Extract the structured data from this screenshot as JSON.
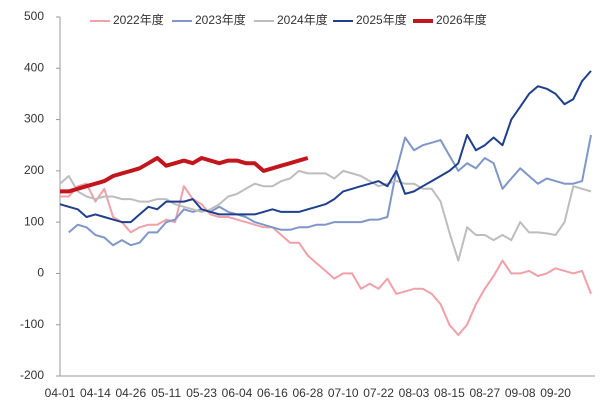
{
  "chart_data": {
    "type": "line",
    "categories": [
      "04-01",
      null,
      null,
      null,
      "04-14",
      null,
      null,
      null,
      "04-26",
      null,
      null,
      null,
      "05-11",
      null,
      null,
      null,
      "05-23",
      null,
      null,
      null,
      "06-04",
      null,
      null,
      null,
      "06-16",
      null,
      null,
      null,
      "06-28",
      null,
      null,
      null,
      "07-10",
      null,
      null,
      null,
      "07-22",
      null,
      null,
      null,
      "08-03",
      null,
      null,
      null,
      "08-15",
      null,
      null,
      null,
      "08-27",
      null,
      null,
      null,
      "09-08",
      null,
      null,
      null,
      "09-20",
      null,
      null,
      null,
      null
    ],
    "series": [
      {
        "name": "2022年度",
        "color": "#f0a0a8",
        "width": 2,
        "values": [
          150,
          150,
          170,
          175,
          140,
          165,
          110,
          100,
          80,
          90,
          95,
          95,
          105,
          100,
          170,
          145,
          135,
          115,
          110,
          110,
          105,
          100,
          95,
          90,
          90,
          75,
          60,
          60,
          35,
          20,
          5,
          -10,
          0,
          0,
          -30,
          -20,
          -30,
          -10,
          -40,
          -35,
          -30,
          -30,
          -40,
          -60,
          -100,
          -120,
          -100,
          -60,
          -30,
          -5,
          25,
          0,
          0,
          5,
          -5,
          0,
          10,
          5,
          0,
          5,
          -40
        ]
      },
      {
        "name": "2023年度",
        "color": "#7f97c8",
        "width": 2,
        "values": [
          null,
          80,
          95,
          90,
          75,
          70,
          55,
          65,
          55,
          60,
          80,
          80,
          100,
          105,
          125,
          120,
          125,
          120,
          130,
          120,
          115,
          110,
          100,
          95,
          90,
          85,
          85,
          90,
          90,
          95,
          95,
          100,
          100,
          100,
          100,
          105,
          105,
          110,
          200,
          265,
          240,
          250,
          255,
          260,
          230,
          200,
          215,
          205,
          225,
          215,
          165,
          185,
          205,
          190,
          175,
          185,
          180,
          175,
          175,
          180,
          270
        ]
      },
      {
        "name": "2024年度",
        "color": "#bdbdbd",
        "width": 2,
        "values": [
          175,
          190,
          160,
          150,
          145,
          150,
          150,
          145,
          145,
          140,
          140,
          145,
          145,
          135,
          130,
          125,
          120,
          125,
          135,
          150,
          155,
          165,
          175,
          170,
          170,
          180,
          185,
          200,
          195,
          195,
          195,
          185,
          200,
          195,
          190,
          180,
          170,
          175,
          180,
          175,
          175,
          165,
          165,
          140,
          80,
          25,
          90,
          75,
          75,
          65,
          75,
          65,
          100,
          80,
          80,
          78,
          75,
          100,
          170,
          165,
          160
        ]
      },
      {
        "name": "2025年度",
        "color": "#1f3f8c",
        "width": 2,
        "values": [
          135,
          130,
          125,
          110,
          115,
          110,
          105,
          100,
          100,
          115,
          130,
          125,
          140,
          140,
          140,
          145,
          125,
          120,
          115,
          115,
          115,
          115,
          115,
          120,
          125,
          120,
          120,
          120,
          125,
          130,
          135,
          145,
          160,
          165,
          170,
          175,
          180,
          170,
          200,
          155,
          160,
          170,
          180,
          190,
          200,
          215,
          270,
          240,
          250,
          265,
          250,
          300,
          325,
          350,
          365,
          360,
          350,
          330,
          340,
          375,
          395
        ]
      },
      {
        "name": "2026年度",
        "color": "#c0161c",
        "width": 4,
        "values": [
          160,
          160,
          165,
          170,
          175,
          180,
          190,
          195,
          200,
          205,
          215,
          225,
          210,
          215,
          220,
          215,
          225,
          220,
          215,
          220,
          220,
          215,
          215,
          200,
          205,
          210,
          215,
          220,
          225,
          null,
          null,
          null,
          null,
          null,
          null,
          null,
          null,
          null,
          null,
          null,
          null,
          null,
          null,
          null,
          null,
          null,
          null,
          null,
          null,
          null,
          null,
          null,
          null,
          null,
          null,
          null,
          null,
          null,
          null,
          null,
          null
        ]
      }
    ],
    "ylim": [
      -200,
      500
    ],
    "yticks": [
      -200,
      -100,
      0,
      100,
      200,
      300,
      400,
      500
    ],
    "legend": "top"
  }
}
